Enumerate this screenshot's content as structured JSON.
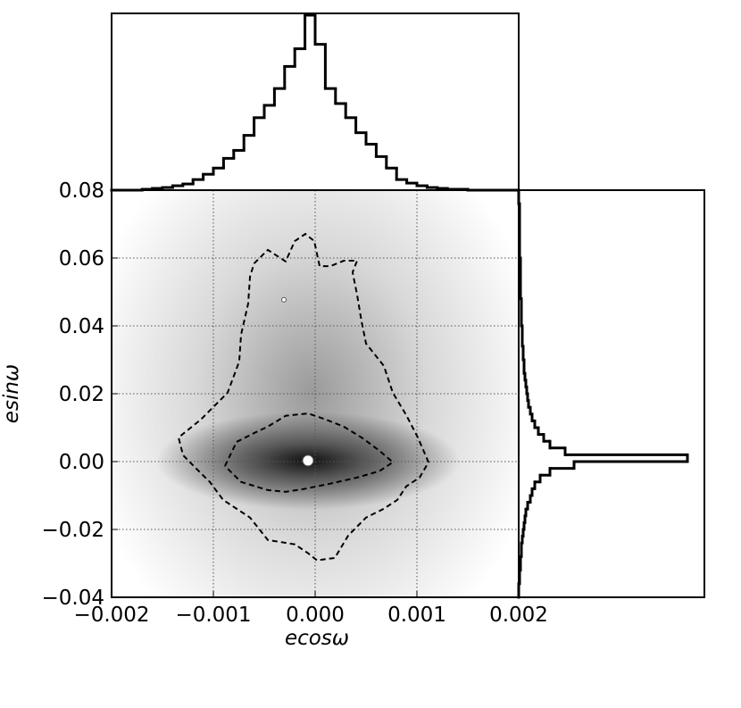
{
  "chart_data": [
    {
      "type": "contour",
      "x_label": "ecosω",
      "y_label": "esinω",
      "xlim": [
        -0.002,
        0.002
      ],
      "ylim": [
        -0.04,
        0.08
      ],
      "xticks": [
        {
          "value": -0.002,
          "label": "−0.002"
        },
        {
          "value": -0.001,
          "label": "−0.001"
        },
        {
          "value": 0,
          "label": "0.000"
        },
        0.001,
        0.002
      ],
      "yticks": [
        {
          "value": -0.04,
          "label": "−0.04"
        },
        {
          "value": -0.02,
          "label": "−0.02"
        },
        {
          "value": 0,
          "label": "0.00"
        },
        0.02,
        0.04,
        0.06,
        0.08
      ],
      "grid": true,
      "color": "#000000",
      "contours": [
        {
          "x": [
            -0.0006,
            -0.000465,
            -0.00029,
            -0.0002,
            -9.6e-05,
            -9e-06,
            4.4e-05,
            0.000149,
            0.000281,
            0.000412,
            0.000368,
            0.000412,
            0.000456,
            0.0005,
            0.000675,
            0.000763,
            0.000895,
            0.001009,
            0.001114,
            0.001026,
            0.000895,
            0.000807,
            0.000675,
            0.0005,
            0.000325,
            0.000193,
            1.8e-05,
            -7e-05,
            -0.0002,
            -0.000465,
            -0.00064,
            -0.000904,
            -0.001035,
            -0.001167,
            -0.001298,
            -0.001342,
            -0.001123,
            -0.00086,
            -0.000746,
            -0.000728,
            -0.000658,
            -0.00064,
            -0.0006
          ],
          "y": [
            0.0584,
            0.0624,
            0.059,
            0.065,
            0.0671,
            0.065,
            0.0576,
            0.0576,
            0.0592,
            0.0592,
            0.0558,
            0.0492,
            0.0413,
            0.0348,
            0.0282,
            0.0203,
            0.0137,
            0.0071,
            -0.0002,
            -0.0047,
            -0.0073,
            -0.0113,
            -0.0139,
            -0.0165,
            -0.0218,
            -0.0284,
            -0.0291,
            -0.027,
            -0.0244,
            -0.0231,
            -0.0165,
            -0.0113,
            -0.006,
            -0.0021,
            0.0019,
            0.0071,
            0.0124,
            0.0203,
            0.0295,
            0.0374,
            0.0466,
            0.0545,
            0.0584
          ]
        },
        {
          "x": [
            -0.000886,
            -0.000772,
            -0.0006,
            -0.000465,
            -0.00029,
            -7e-05,
            0.000105,
            0.000281,
            0.000456,
            0.000632,
            0.000763,
            0.000632,
            0.000412,
            0.000149,
            -0.000114,
            -0.00029,
            -0.000465,
            -0.000728,
            -0.000886
          ],
          "y": [
            -0.0013,
            0.0058,
            0.0084,
            0.0103,
            0.0135,
            0.0142,
            0.0124,
            0.0103,
            0.0071,
            0.0032,
            -0.0002,
            -0.0028,
            -0.0047,
            -0.0065,
            -0.0081,
            -0.0089,
            -0.0084,
            -0.006,
            -0.0013
          ]
        }
      ],
      "points": {
        "x": [
          -7e-05,
          -0.000307
        ],
        "y": [
          0.0003,
          0.0477
        ]
      }
    },
    {
      "type": "histogram",
      "orientation": "vertical",
      "color": "#000000",
      "xlim": [
        -0.002,
        0.002
      ],
      "ylim": [
        0,
        200
      ],
      "bins": [
        -0.002,
        -0.0019,
        -0.0018,
        -0.0017,
        -0.0016,
        -0.0015,
        -0.0014,
        -0.0013,
        -0.0012,
        -0.0011,
        -0.001,
        -0.0009,
        -0.0008,
        -0.0007,
        -0.0006,
        -0.0005,
        -0.0004,
        -0.0003,
        -0.0002,
        -0.0001,
        0,
        0.0001,
        0.0002,
        0.0003,
        0.0004,
        0.0005,
        0.0006,
        0.0007,
        0.0008,
        0.0009,
        0.001,
        0.0011,
        0.0012,
        0.0013,
        0.0014,
        0.0015,
        0.0016,
        0.0017,
        0.0018,
        0.0019,
        0.002
      ],
      "counts": [
        0,
        0,
        0,
        1,
        2,
        3,
        5,
        7,
        12,
        18,
        25,
        36,
        45,
        62,
        82,
        96,
        115,
        140,
        160,
        198,
        165,
        115,
        98,
        82,
        65,
        52,
        38,
        25,
        12,
        8,
        5,
        3,
        2,
        1,
        1,
        0,
        0,
        0,
        0,
        0
      ]
    },
    {
      "type": "histogram",
      "orientation": "horizontal",
      "color": "#000000",
      "xlim": [
        0,
        208
      ],
      "ylim": [
        -0.04,
        0.08
      ],
      "bins": [
        -0.04,
        -0.038,
        -0.036,
        -0.034,
        -0.032,
        -0.03,
        -0.028,
        -0.026,
        -0.024,
        -0.022,
        -0.02,
        -0.018,
        -0.016,
        -0.014,
        -0.012,
        -0.01,
        -0.008,
        -0.006,
        -0.004,
        -0.002,
        0,
        0.002,
        0.004,
        0.006,
        0.008,
        0.01,
        0.012,
        0.014,
        0.016,
        0.018,
        0.02,
        0.022,
        0.024,
        0.026,
        0.028,
        0.03,
        0.032,
        0.034,
        0.036,
        0.038,
        0.04,
        0.042,
        0.044,
        0.046,
        0.048,
        0.05,
        0.052,
        0.054,
        0.056,
        0.058,
        0.06,
        0.062,
        0.064,
        0.066,
        0.068,
        0.07,
        0.072,
        0.074,
        0.076,
        0.078,
        0.08
      ],
      "counts": [
        0,
        0,
        1,
        1,
        2,
        2,
        3,
        3,
        4,
        5,
        6,
        7,
        8,
        10,
        13,
        15,
        18,
        24,
        35,
        62,
        189,
        52,
        35,
        28,
        22,
        18,
        15,
        13,
        11,
        10,
        9,
        8,
        7,
        6,
        6,
        5,
        5,
        4,
        4,
        4,
        3,
        3,
        3,
        3,
        2,
        2,
        2,
        2,
        2,
        2,
        1,
        1,
        1,
        1,
        1,
        1,
        1,
        1,
        0,
        0
      ]
    }
  ]
}
